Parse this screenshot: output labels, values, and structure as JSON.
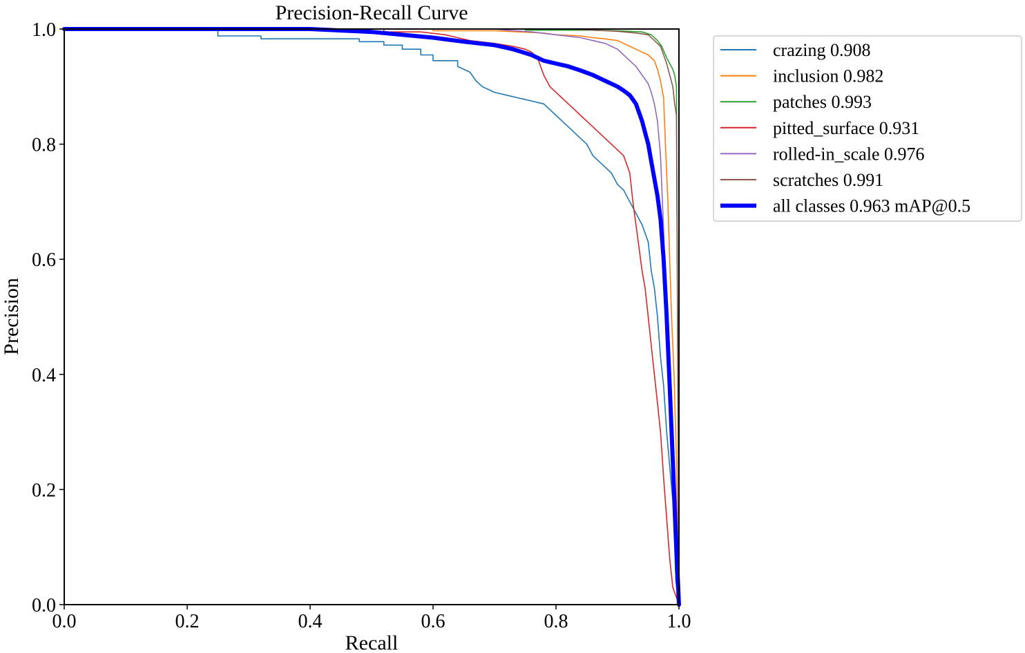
{
  "chart_data": {
    "type": "line",
    "title": "Precision-Recall Curve",
    "xlabel": "Recall",
    "ylabel": "Precision",
    "xlim": [
      0,
      1
    ],
    "ylim": [
      0,
      1
    ],
    "xticks": [
      "0.0",
      "0.2",
      "0.4",
      "0.6",
      "0.8",
      "1.0"
    ],
    "yticks": [
      "0.0",
      "0.2",
      "0.4",
      "0.6",
      "0.8",
      "1.0"
    ],
    "legend_position": "outside-right-top",
    "series": [
      {
        "name": "crazing 0.908",
        "color": "#1f77b4",
        "x": [
          0,
          0.25,
          0.25,
          0.32,
          0.32,
          0.48,
          0.48,
          0.52,
          0.52,
          0.55,
          0.55,
          0.58,
          0.58,
          0.6,
          0.6,
          0.64,
          0.64,
          0.66,
          0.67,
          0.68,
          0.69,
          0.7,
          0.72,
          0.74,
          0.76,
          0.78,
          0.79,
          0.8,
          0.81,
          0.82,
          0.83,
          0.84,
          0.85,
          0.86,
          0.87,
          0.88,
          0.89,
          0.9,
          0.91,
          0.92,
          0.93,
          0.94,
          0.95,
          0.955,
          0.96,
          0.965,
          0.97,
          0.975,
          0.98,
          0.985,
          0.99,
          0.993,
          0.995,
          1.0
        ],
        "y": [
          1.0,
          1.0,
          0.988,
          0.988,
          0.983,
          0.983,
          0.978,
          0.978,
          0.972,
          0.972,
          0.965,
          0.965,
          0.955,
          0.955,
          0.945,
          0.945,
          0.935,
          0.925,
          0.91,
          0.9,
          0.895,
          0.89,
          0.885,
          0.88,
          0.875,
          0.87,
          0.86,
          0.85,
          0.84,
          0.83,
          0.82,
          0.81,
          0.8,
          0.78,
          0.77,
          0.76,
          0.75,
          0.73,
          0.72,
          0.7,
          0.68,
          0.66,
          0.63,
          0.58,
          0.55,
          0.5,
          0.43,
          0.38,
          0.3,
          0.24,
          0.18,
          0.1,
          0.04,
          0.0
        ]
      },
      {
        "name": "inclusion 0.982",
        "color": "#ff7f0e",
        "x": [
          0,
          0.6,
          0.6,
          0.7,
          0.74,
          0.78,
          0.8,
          0.84,
          0.86,
          0.88,
          0.9,
          0.91,
          0.92,
          0.93,
          0.94,
          0.95,
          0.96,
          0.965,
          0.97,
          0.975,
          0.978,
          0.982,
          0.985,
          0.988,
          0.992,
          0.996,
          1.0
        ],
        "y": [
          1.0,
          1.0,
          0.997,
          0.997,
          0.995,
          0.993,
          0.99,
          0.988,
          0.985,
          0.983,
          0.98,
          0.975,
          0.97,
          0.965,
          0.96,
          0.955,
          0.945,
          0.93,
          0.91,
          0.88,
          0.8,
          0.7,
          0.6,
          0.5,
          0.4,
          0.25,
          0.0
        ]
      },
      {
        "name": "patches 0.993",
        "color": "#2ca02c",
        "x": [
          0,
          0.75,
          0.75,
          0.86,
          0.9,
          0.94,
          0.955,
          0.965,
          0.972,
          0.976,
          0.98,
          0.985,
          0.99,
          0.993,
          0.996,
          1.0
        ],
        "y": [
          1.0,
          1.0,
          0.998,
          0.998,
          0.997,
          0.995,
          0.99,
          0.98,
          0.97,
          0.96,
          0.95,
          0.94,
          0.93,
          0.92,
          0.9,
          0.0
        ]
      },
      {
        "name": "pitted_surface 0.931",
        "color": "#d62728",
        "x": [
          0,
          0.52,
          0.52,
          0.58,
          0.62,
          0.64,
          0.66,
          0.7,
          0.73,
          0.75,
          0.76,
          0.77,
          0.78,
          0.79,
          0.8,
          0.81,
          0.82,
          0.83,
          0.84,
          0.85,
          0.86,
          0.87,
          0.88,
          0.89,
          0.9,
          0.91,
          0.92,
          0.925,
          0.93,
          0.935,
          0.94,
          0.945,
          0.95,
          0.955,
          0.96,
          0.965,
          0.97,
          0.975,
          0.98,
          0.985,
          0.99,
          1.0
        ],
        "y": [
          1.0,
          1.0,
          0.995,
          0.995,
          0.99,
          0.985,
          0.98,
          0.975,
          0.97,
          0.965,
          0.96,
          0.95,
          0.92,
          0.9,
          0.89,
          0.88,
          0.87,
          0.86,
          0.85,
          0.84,
          0.83,
          0.82,
          0.81,
          0.8,
          0.79,
          0.78,
          0.75,
          0.7,
          0.66,
          0.62,
          0.58,
          0.55,
          0.5,
          0.45,
          0.4,
          0.35,
          0.3,
          0.22,
          0.15,
          0.08,
          0.03,
          0.0
        ]
      },
      {
        "name": "rolled-in_scale 0.976",
        "color": "#9467bd",
        "x": [
          0,
          0.7,
          0.72,
          0.76,
          0.8,
          0.84,
          0.86,
          0.88,
          0.9,
          0.91,
          0.92,
          0.93,
          0.94,
          0.95,
          0.955,
          0.96,
          0.965,
          0.97,
          0.975,
          0.98,
          0.985,
          0.99,
          1.0
        ],
        "y": [
          1.0,
          1.0,
          0.998,
          0.995,
          0.99,
          0.985,
          0.98,
          0.975,
          0.965,
          0.955,
          0.945,
          0.935,
          0.92,
          0.905,
          0.89,
          0.87,
          0.84,
          0.78,
          0.65,
          0.5,
          0.35,
          0.2,
          0.0
        ]
      },
      {
        "name": "scratches 0.991",
        "color": "#8c564b",
        "x": [
          0,
          0.82,
          0.86,
          0.9,
          0.93,
          0.95,
          0.96,
          0.97,
          0.975,
          0.98,
          0.985,
          0.99,
          0.993,
          0.996,
          1.0
        ],
        "y": [
          1.0,
          1.0,
          0.998,
          0.996,
          0.993,
          0.99,
          0.98,
          0.97,
          0.955,
          0.94,
          0.92,
          0.9,
          0.87,
          0.85,
          0.0
        ]
      },
      {
        "name": "all classes 0.963 mAP@0.5",
        "color": "#0000ff",
        "thick": true,
        "x": [
          0,
          0.4,
          0.5,
          0.6,
          0.65,
          0.7,
          0.73,
          0.76,
          0.78,
          0.8,
          0.82,
          0.84,
          0.86,
          0.88,
          0.9,
          0.91,
          0.92,
          0.93,
          0.935,
          0.94,
          0.945,
          0.95,
          0.955,
          0.96,
          0.965,
          0.97,
          0.975,
          0.98,
          0.985,
          0.99,
          0.995,
          1.0
        ],
        "y": [
          1.0,
          1.0,
          0.995,
          0.985,
          0.978,
          0.972,
          0.965,
          0.955,
          0.945,
          0.94,
          0.935,
          0.928,
          0.92,
          0.91,
          0.9,
          0.893,
          0.885,
          0.87,
          0.855,
          0.84,
          0.82,
          0.8,
          0.77,
          0.74,
          0.71,
          0.67,
          0.6,
          0.5,
          0.38,
          0.25,
          0.12,
          0.0
        ]
      }
    ]
  }
}
